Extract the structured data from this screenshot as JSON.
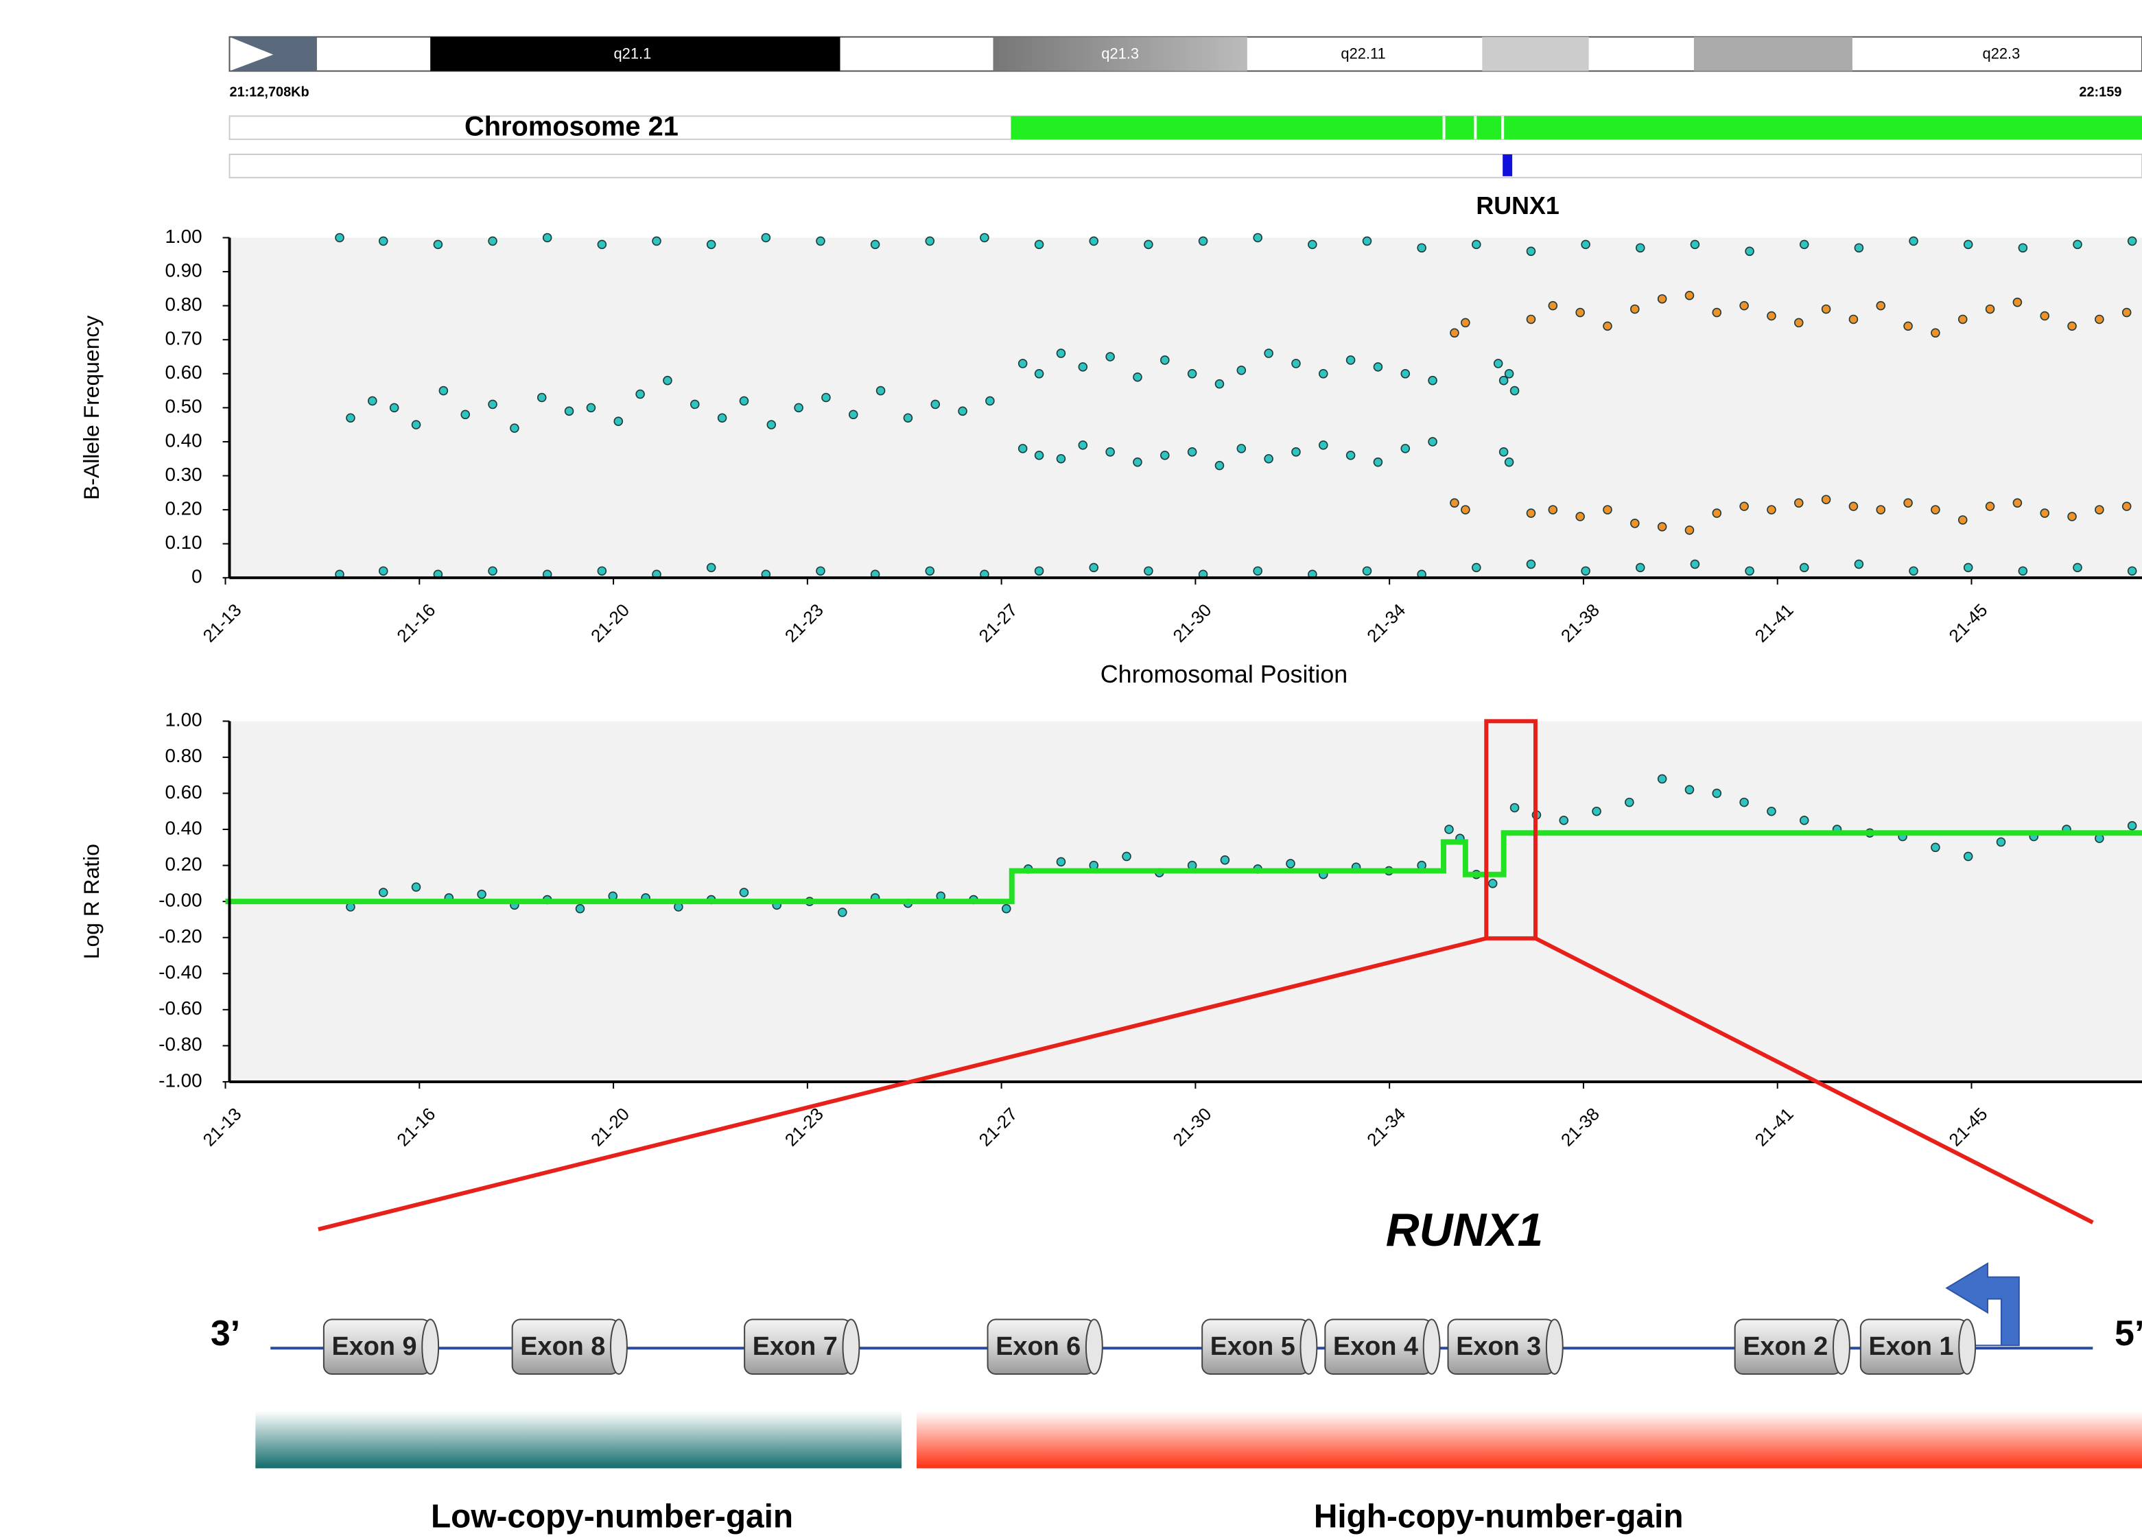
{
  "ideogram": {
    "bands": [
      "q21.1",
      "q21.3",
      "q22.11",
      "q22.3"
    ],
    "start": "21:12,708Kb",
    "end": "22:159"
  },
  "track": {
    "label": "Chromosome 21",
    "gene": "RUNX1"
  },
  "chart_data": [
    {
      "type": "scatter",
      "ylabel": "B-Allele Frequency",
      "xlabel": "Chromosomal Position",
      "xlim": [
        12.71,
        47.78
      ],
      "xticks": [
        {
          "value": 12.71,
          "label": "21-13"
        },
        {
          "value": 16.26,
          "label": "21-16"
        },
        {
          "value": 19.81,
          "label": "21-20"
        },
        {
          "value": 23.36,
          "label": "21-23"
        },
        {
          "value": 26.91,
          "label": "21-27"
        },
        {
          "value": 30.46,
          "label": "21-30"
        },
        {
          "value": 34.01,
          "label": "21-34"
        },
        {
          "value": 37.56,
          "label": "21-38"
        },
        {
          "value": 41.11,
          "label": "21-41"
        },
        {
          "value": 44.66,
          "label": "21-45"
        }
      ],
      "ylim": [
        0,
        1
      ],
      "yticks": [
        0,
        {
          "value": 0.1,
          "label": "0.10"
        },
        {
          "value": 0.2,
          "label": "0.20"
        },
        {
          "value": 0.3,
          "label": "0.30"
        },
        {
          "value": 0.4,
          "label": "0.40"
        },
        {
          "value": 0.5,
          "label": "0.50"
        },
        {
          "value": 0.6,
          "label": "0.60"
        },
        {
          "value": 0.7,
          "label": "0.70"
        },
        {
          "value": 0.8,
          "label": "0.80"
        },
        {
          "value": 0.9,
          "label": "0.90"
        },
        {
          "value": 1,
          "label": "1.00"
        }
      ],
      "series": [
        {
          "color": "#2fc4c0",
          "x": [
            14.8,
            15.6,
            16.6,
            17.6,
            18.6,
            19.6,
            20.6,
            21.6,
            22.6,
            23.6,
            24.6,
            25.6,
            26.6,
            27.6,
            28.6,
            29.6,
            30.6,
            31.6,
            32.6,
            33.6,
            34.6,
            35.6,
            36.6,
            37.6,
            38.6,
            39.6,
            40.6,
            41.6,
            42.6,
            43.6,
            44.6,
            45.6,
            46.6,
            47.6
          ],
          "values": [
            1,
            0.99,
            0.98,
            0.99,
            1,
            0.98,
            0.99,
            0.98,
            1,
            0.99,
            0.98,
            0.99,
            1,
            0.98,
            0.99,
            0.98,
            0.99,
            1,
            0.98,
            0.99,
            0.97,
            0.98,
            0.96,
            0.98,
            0.97,
            0.98,
            0.96,
            0.98,
            0.97,
            0.99,
            0.98,
            0.97,
            0.98,
            0.99
          ]
        },
        {
          "color": "#2fc4c0",
          "x": [
            14.8,
            15.6,
            16.6,
            17.6,
            18.6,
            19.6,
            20.6,
            21.6,
            22.6,
            23.6,
            24.6,
            25.6,
            26.6,
            27.6,
            28.6,
            29.6,
            30.6,
            31.6,
            32.6,
            33.6,
            34.6,
            35.6,
            36.6,
            37.6,
            38.6,
            39.6,
            40.6,
            41.6,
            42.6,
            43.6,
            44.6,
            45.6,
            46.6,
            47.6
          ],
          "values": [
            0.01,
            0.02,
            0.01,
            0.02,
            0.01,
            0.02,
            0.01,
            0.03,
            0.01,
            0.02,
            0.01,
            0.02,
            0.01,
            0.02,
            0.03,
            0.02,
            0.01,
            0.02,
            0.01,
            0.02,
            0.01,
            0.03,
            0.04,
            0.02,
            0.03,
            0.04,
            0.02,
            0.03,
            0.04,
            0.02,
            0.03,
            0.02,
            0.03,
            0.02
          ]
        },
        {
          "color": "#2fc4c0",
          "x": [
            15.0,
            15.4,
            15.8,
            16.2,
            16.7,
            17.1,
            17.6,
            18.0,
            18.5,
            19.0,
            19.4,
            19.9,
            20.3,
            20.8,
            21.3,
            21.8,
            22.2,
            22.7,
            23.2,
            23.7,
            24.2,
            24.7,
            25.2,
            25.7,
            26.2,
            26.7
          ],
          "values": [
            0.47,
            0.52,
            0.5,
            0.45,
            0.55,
            0.48,
            0.51,
            0.44,
            0.53,
            0.49,
            0.5,
            0.46,
            0.54,
            0.58,
            0.51,
            0.47,
            0.52,
            0.45,
            0.5,
            0.53,
            0.48,
            0.55,
            0.47,
            0.51,
            0.49,
            0.52
          ]
        },
        {
          "color": "#2fc4c0",
          "x": [
            27.3,
            27.6,
            28.0,
            28.4,
            28.9,
            29.4,
            29.9,
            30.4,
            30.9,
            31.3,
            31.8,
            32.3,
            32.8,
            33.3,
            33.8,
            34.3,
            34.8
          ],
          "values": [
            0.63,
            0.6,
            0.66,
            0.62,
            0.65,
            0.59,
            0.64,
            0.6,
            0.57,
            0.61,
            0.66,
            0.63,
            0.6,
            0.64,
            0.62,
            0.6,
            0.58
          ]
        },
        {
          "color": "#2fc4c0",
          "x": [
            27.3,
            27.6,
            28.0,
            28.4,
            28.9,
            29.4,
            29.9,
            30.4,
            30.9,
            31.3,
            31.8,
            32.3,
            32.8,
            33.3,
            33.8,
            34.3,
            34.8
          ],
          "values": [
            0.38,
            0.36,
            0.35,
            0.39,
            0.37,
            0.34,
            0.36,
            0.37,
            0.33,
            0.38,
            0.35,
            0.37,
            0.39,
            0.36,
            0.34,
            0.38,
            0.4
          ]
        },
        {
          "color": "#2fc4c0",
          "x": [
            36.0,
            36.1,
            36.2,
            36.3,
            36.1,
            36.2
          ],
          "values": [
            0.63,
            0.58,
            0.6,
            0.55,
            0.37,
            0.34
          ]
        },
        {
          "color": "#f0922a",
          "x": [
            35.2,
            35.4,
            36.6,
            37.0,
            37.5,
            38.0,
            38.5,
            39.0,
            39.5,
            40.0,
            40.5,
            41.0,
            41.5,
            42.0,
            42.5,
            43.0,
            43.5,
            44.0,
            44.5,
            45.0,
            45.5,
            46.0,
            46.5,
            47.0,
            47.5
          ],
          "values": [
            0.72,
            0.75,
            0.76,
            0.8,
            0.78,
            0.74,
            0.79,
            0.82,
            0.83,
            0.78,
            0.8,
            0.77,
            0.75,
            0.79,
            0.76,
            0.8,
            0.74,
            0.72,
            0.76,
            0.79,
            0.81,
            0.77,
            0.74,
            0.76,
            0.78
          ]
        },
        {
          "color": "#f0922a",
          "x": [
            35.2,
            35.4,
            36.6,
            37.0,
            37.5,
            38.0,
            38.5,
            39.0,
            39.5,
            40.0,
            40.5,
            41.0,
            41.5,
            42.0,
            42.5,
            43.0,
            43.5,
            44.0,
            44.5,
            45.0,
            45.5,
            46.0,
            46.5,
            47.0,
            47.5
          ],
          "values": [
            0.22,
            0.2,
            0.19,
            0.2,
            0.18,
            0.2,
            0.16,
            0.15,
            0.14,
            0.19,
            0.21,
            0.2,
            0.22,
            0.23,
            0.21,
            0.2,
            0.22,
            0.2,
            0.17,
            0.21,
            0.22,
            0.19,
            0.18,
            0.2,
            0.21
          ]
        }
      ]
    },
    {
      "type": "scatter",
      "ylabel": "Log R Ratio",
      "xlim": [
        12.71,
        47.78
      ],
      "xticks": [
        {
          "value": 12.71,
          "label": "21-13"
        },
        {
          "value": 16.26,
          "label": "21-16"
        },
        {
          "value": 19.81,
          "label": "21-20"
        },
        {
          "value": 23.36,
          "label": "21-23"
        },
        {
          "value": 26.91,
          "label": "21-27"
        },
        {
          "value": 30.46,
          "label": "21-30"
        },
        {
          "value": 34.01,
          "label": "21-34"
        },
        {
          "value": 37.56,
          "label": "21-38"
        },
        {
          "value": 41.11,
          "label": "21-41"
        },
        {
          "value": 44.66,
          "label": "21-45"
        }
      ],
      "ylim": [
        -1,
        1
      ],
      "yticks": [
        {
          "value": -1,
          "label": "-1.00"
        },
        {
          "value": -0.8,
          "label": "-0.80"
        },
        {
          "value": -0.6,
          "label": "-0.60"
        },
        {
          "value": -0.4,
          "label": "-0.40"
        },
        {
          "value": -0.2,
          "label": "-0.20"
        },
        {
          "value": 0,
          "label": "-0.00"
        },
        {
          "value": 0.2,
          "label": "0.20"
        },
        {
          "value": 0.4,
          "label": "0.40"
        },
        {
          "value": 0.6,
          "label": "0.60"
        },
        {
          "value": 0.8,
          "label": "0.80"
        },
        {
          "value": 1,
          "label": "1.00"
        }
      ],
      "series": [
        {
          "color": "#2fc4c0",
          "x": [
            15.0,
            15.6,
            16.2,
            16.8,
            17.4,
            18.0,
            18.6,
            19.2,
            19.8,
            20.4,
            21.0,
            21.6,
            22.2,
            22.8,
            23.4,
            24.0,
            24.6,
            25.2,
            25.8,
            26.4,
            27.0,
            27.4,
            28.0,
            28.6,
            29.2,
            29.8,
            30.4,
            31.0,
            31.6,
            32.2,
            32.8,
            33.4,
            34.0,
            34.6,
            35.1,
            35.3,
            35.6,
            35.9,
            36.3,
            36.7,
            37.2,
            37.8,
            38.4,
            39.0,
            39.5,
            40.0,
            40.5,
            41.0,
            41.6,
            42.2,
            42.8,
            43.4,
            44.0,
            44.6,
            45.2,
            45.8,
            46.4,
            47.0,
            47.6
          ],
          "values": [
            -0.03,
            0.05,
            0.08,
            0.02,
            0.04,
            -0.02,
            0.01,
            -0.04,
            0.03,
            0.02,
            -0.03,
            0.01,
            0.05,
            -0.02,
            0,
            -0.06,
            0.02,
            -0.01,
            0.03,
            0.01,
            -0.04,
            0.18,
            0.22,
            0.2,
            0.25,
            0.16,
            0.2,
            0.23,
            0.18,
            0.21,
            0.15,
            0.19,
            0.17,
            0.2,
            0.4,
            0.35,
            0.15,
            0.1,
            0.52,
            0.48,
            0.45,
            0.5,
            0.55,
            0.68,
            0.62,
            0.6,
            0.55,
            0.5,
            0.45,
            0.4,
            0.38,
            0.36,
            0.3,
            0.25,
            0.33,
            0.36,
            0.4,
            0.35,
            0.42
          ]
        },
        {
          "type": "line",
          "color": "#22e022",
          "x": [
            12.71,
            27.1,
            27.1,
            35.0,
            35.0,
            35.4,
            35.4,
            36.1,
            36.1,
            47.78
          ],
          "values": [
            0,
            0,
            0.17,
            0.17,
            0.33,
            0.33,
            0.15,
            0.15,
            0.38,
            0.38
          ]
        }
      ]
    }
  ],
  "gene_diagram": {
    "title": "RUNX1",
    "three_prime": "3’",
    "five_prime": "5’",
    "exons": [
      "Exon 9",
      "Exon 8",
      "Exon 7",
      "Exon 6",
      "Exon 5",
      "Exon 4",
      "Exon 3",
      "Exon 2",
      "Exon 1"
    ],
    "regions": [
      "Low-copy-number-gain",
      "High-copy-number-gain"
    ]
  }
}
